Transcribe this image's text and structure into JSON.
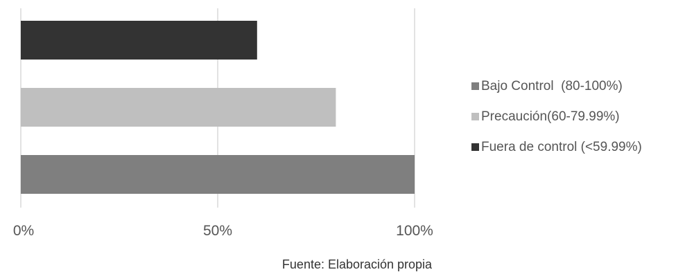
{
  "chart_data": {
    "type": "bar",
    "orientation": "horizontal",
    "x_range": [
      0,
      100
    ],
    "x_ticks": [
      0,
      50,
      100
    ],
    "x_tick_labels": [
      "0%",
      "50%",
      "100%"
    ],
    "grid": true,
    "legend_position": "right",
    "series": [
      {
        "name": "Bajo Control  (80-100%)",
        "value": 100,
        "color": "#7f7f7f"
      },
      {
        "name": "Precaución(60-79.99%)",
        "value": 80,
        "color": "#bfbfbf"
      },
      {
        "name": "Fuera de control (<59.99%)",
        "value": 60,
        "color": "#333333"
      }
    ],
    "source": "Fuente: Elaboración propia"
  }
}
